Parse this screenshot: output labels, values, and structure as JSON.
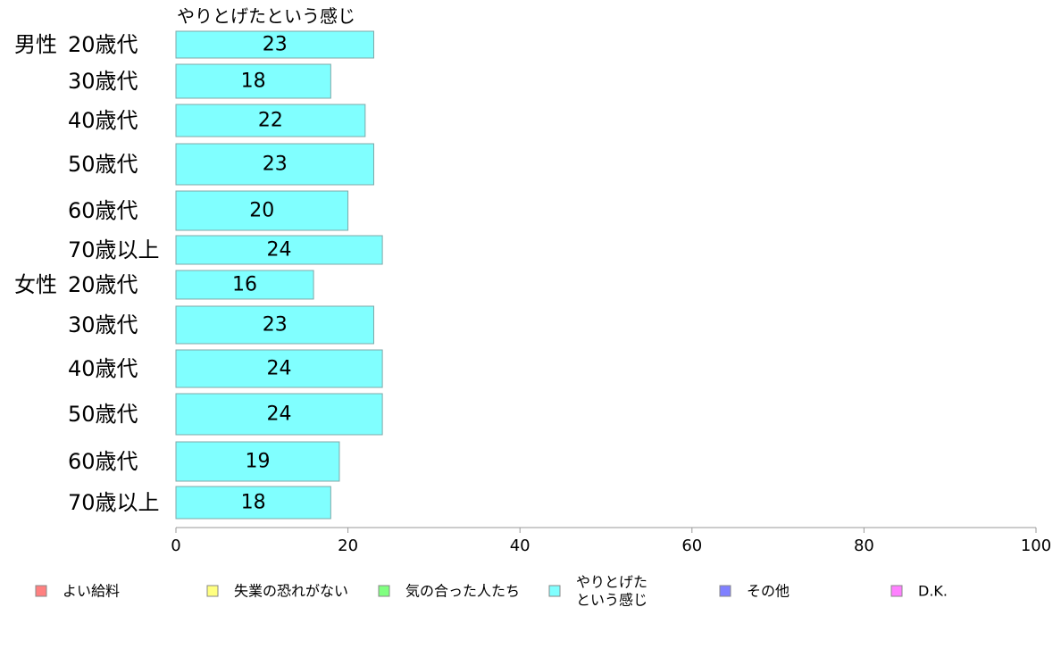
{
  "chart_data": {
    "type": "bar",
    "orientation": "horizontal",
    "column_header": "やりとげたという感じ",
    "series": [
      {
        "name": "やりとげたという感じ",
        "color": "#80ffff",
        "values": [
          23,
          18,
          22,
          23,
          20,
          24,
          16,
          23,
          24,
          24,
          19,
          18
        ]
      }
    ],
    "rows": [
      {
        "group": "男性",
        "label": "20歳代"
      },
      {
        "group": "",
        "label": "30歳代"
      },
      {
        "group": "",
        "label": "40歳代"
      },
      {
        "group": "",
        "label": "50歳代"
      },
      {
        "group": "",
        "label": "60歳代"
      },
      {
        "group": "",
        "label": "70歳以上"
      },
      {
        "group": "女性",
        "label": "20歳代"
      },
      {
        "group": "",
        "label": "30歳代"
      },
      {
        "group": "",
        "label": "40歳代"
      },
      {
        "group": "",
        "label": "50歳代"
      },
      {
        "group": "",
        "label": "60歳代"
      },
      {
        "group": "",
        "label": "70歳以上"
      }
    ],
    "xlim": [
      0,
      100
    ],
    "xticks": [
      0,
      20,
      40,
      60,
      80,
      100
    ],
    "grid": false,
    "legend_position": "bottom",
    "legend": [
      {
        "label_lines": [
          "よい給料"
        ],
        "color": "#ff8080"
      },
      {
        "label_lines": [
          "失業の恐れがない"
        ],
        "color": "#ffff80"
      },
      {
        "label_lines": [
          "気の合った人たち"
        ],
        "color": "#80ff80"
      },
      {
        "label_lines": [
          "やりとげた",
          "という感じ"
        ],
        "color": "#80ffff"
      },
      {
        "label_lines": [
          "その他"
        ],
        "color": "#8080ff"
      },
      {
        "label_lines": [
          "D.K."
        ],
        "color": "#ff80ff"
      }
    ]
  }
}
